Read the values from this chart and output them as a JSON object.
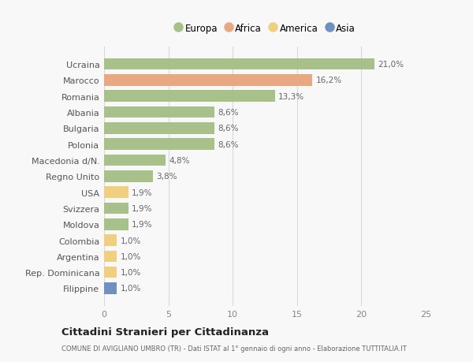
{
  "countries": [
    "Ucraina",
    "Marocco",
    "Romania",
    "Albania",
    "Bulgaria",
    "Polonia",
    "Macedonia d/N.",
    "Regno Unito",
    "USA",
    "Svizzera",
    "Moldova",
    "Colombia",
    "Argentina",
    "Rep. Dominicana",
    "Filippine"
  ],
  "values": [
    21.0,
    16.2,
    13.3,
    8.6,
    8.6,
    8.6,
    4.8,
    3.8,
    1.9,
    1.9,
    1.9,
    1.0,
    1.0,
    1.0,
    1.0
  ],
  "labels": [
    "21,0%",
    "16,2%",
    "13,3%",
    "8,6%",
    "8,6%",
    "8,6%",
    "4,8%",
    "3,8%",
    "1,9%",
    "1,9%",
    "1,9%",
    "1,0%",
    "1,0%",
    "1,0%",
    "1,0%"
  ],
  "continents": [
    "Europa",
    "Africa",
    "Europa",
    "Europa",
    "Europa",
    "Europa",
    "Europa",
    "Europa",
    "America",
    "Europa",
    "Europa",
    "America",
    "America",
    "America",
    "Asia"
  ],
  "colors": {
    "Europa": "#a8c08a",
    "Africa": "#e8a882",
    "America": "#f0d080",
    "Asia": "#7090c0"
  },
  "legend_labels": [
    "Europa",
    "Africa",
    "America",
    "Asia"
  ],
  "legend_colors": [
    "#a8c08a",
    "#e8a882",
    "#f0d080",
    "#7090c0"
  ],
  "xlim": [
    0,
    25
  ],
  "xticks": [
    0,
    5,
    10,
    15,
    20,
    25
  ],
  "title": "Cittadini Stranieri per Cittadinanza",
  "subtitle": "COMUNE DI AVIGLIANO UMBRO (TR) - Dati ISTAT al 1° gennaio di ogni anno - Elaborazione TUTTITALIA.IT",
  "bg_color": "#f8f8f8",
  "grid_color": "#d8d8d8"
}
